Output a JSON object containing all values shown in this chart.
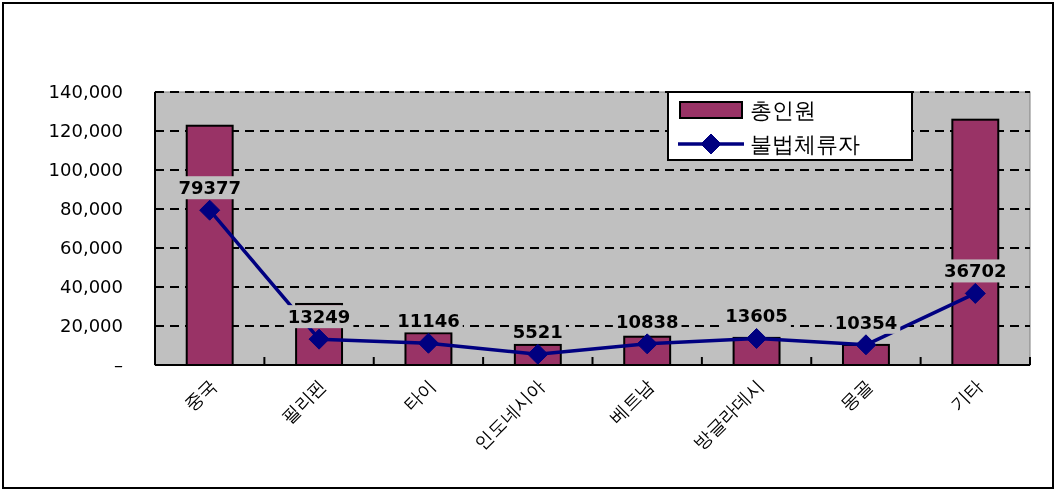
{
  "chart_data": {
    "type": "bar",
    "categories": [
      "중국",
      "필리핀",
      "타이",
      "인도네시아",
      "베트남",
      "방글라데시",
      "몽골",
      "기타"
    ],
    "series": [
      {
        "name": "총인원",
        "color": "#993366",
        "values": [
          122700,
          31300,
          16300,
          10300,
          14500,
          13900,
          10300,
          125800
        ]
      },
      {
        "name": "불법체류자",
        "type": "line",
        "color": "#000080",
        "marker": "diamond",
        "values": [
          79377,
          13249,
          11146,
          5521,
          10838,
          13605,
          10354,
          36702
        ],
        "value_labels": [
          "79377",
          "13249",
          "11146",
          "5521",
          "10838",
          "13605",
          "10354",
          "36702"
        ]
      }
    ],
    "ylim": [
      0,
      140000
    ],
    "yticks": [
      {
        "value": 0,
        "label": "–"
      },
      {
        "value": 20000,
        "label": "20,000"
      },
      {
        "value": 40000,
        "label": "40,000"
      },
      {
        "value": 60000,
        "label": "60,000"
      },
      {
        "value": 80000,
        "label": "80,000"
      },
      {
        "value": 100000,
        "label": "100,000"
      },
      {
        "value": 120000,
        "label": "120,000"
      },
      {
        "value": 140000,
        "label": "140,000"
      }
    ],
    "grid": "y",
    "legend": "top right"
  }
}
